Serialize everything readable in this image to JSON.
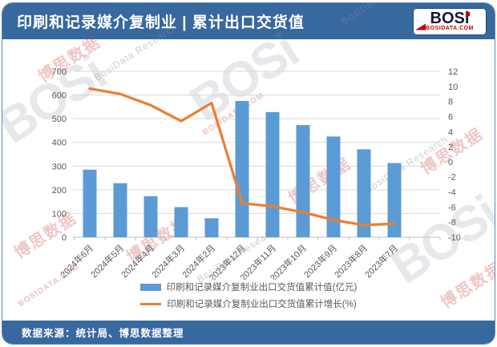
{
  "header": {
    "title": "印刷和记录媒介复制业 | 累计出口交货值",
    "logo": {
      "brand": "BOSi",
      "domain": "BOSIDATA.COM"
    }
  },
  "footer": {
    "source": "数据来源：统计局、博思数据整理"
  },
  "watermark": {
    "brand": "BOSi",
    "cn": "博思数据",
    "en": "BosiData Research",
    "domain": "BOSIDATA.COM"
  },
  "colors": {
    "header_blue": "#37689E",
    "bar_blue": "#5B9BD5",
    "line_orange": "#ED7D31",
    "grid": "#D9D9D9",
    "axis_line": "#BFBFBF",
    "axis_text": "#595959",
    "logo_red": "#C00000"
  },
  "chart_data": {
    "type": "bar+line combo",
    "categories": [
      "2024年6月",
      "2024年5月",
      "2024年4月",
      "2024年3月",
      "2024年2月",
      "2023年12月",
      "2023年11月",
      "2023年10月",
      "2023年9月",
      "2023年8月",
      "2023年7月"
    ],
    "series": [
      {
        "name": "印刷和记录媒介复制业出口交货值累计值(亿元)",
        "type": "bar",
        "axis": "left",
        "color": "#5B9BD5",
        "values": [
          285,
          228,
          173,
          127,
          80,
          575,
          528,
          473,
          425,
          371,
          313
        ]
      },
      {
        "name": "印刷和记录媒介复制业出口交货值累计增长(%)",
        "type": "line",
        "axis": "right",
        "color": "#ED7D31",
        "values": [
          9.7,
          9.0,
          7.5,
          5.4,
          7.8,
          -5.5,
          -5.9,
          -6.7,
          -7.7,
          -8.4,
          -8.2
        ]
      }
    ],
    "left_axis": {
      "min": 0,
      "max": 700,
      "step": 100
    },
    "right_axis": {
      "min": -10,
      "max": 12,
      "step": 2
    },
    "grid": true,
    "legend_position": "bottom",
    "x_label_rotation": -45
  }
}
